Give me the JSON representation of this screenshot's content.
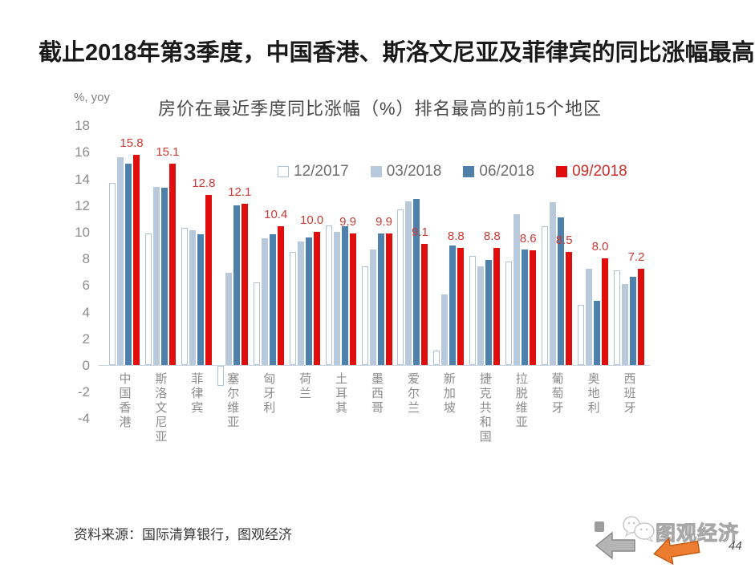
{
  "page": {
    "title": "截止2018年第3季度，中国香港、斯洛文尼亚及菲律宾的同比涨幅最高。"
  },
  "chart_data": {
    "type": "bar",
    "title": "房价在最近季度同比涨幅（%）排名最高的前15个地区",
    "unit_label": "%, yoy",
    "ylim": [
      -4,
      18
    ],
    "yticks": [
      18,
      16,
      14,
      12,
      10,
      8,
      6,
      4,
      2,
      0,
      -2,
      -4
    ],
    "grid": false,
    "legend_position": "top-inside",
    "categories": [
      "中国香港",
      "斯洛文尼亚",
      "菲律宾",
      "塞尔维亚",
      "匈牙利",
      "荷兰",
      "土耳其",
      "墨西哥",
      "爱尔兰",
      "新加坡",
      "捷克共和国",
      "拉脱维亚",
      "葡萄牙",
      "奥地利",
      "西班牙"
    ],
    "series": [
      {
        "name": "12/2017",
        "style": "outline",
        "color": "#ffffff",
        "border": "#b0c3d6",
        "values": [
          13.7,
          9.9,
          10.3,
          -1.5,
          6.2,
          8.5,
          10.5,
          7.4,
          11.7,
          1.1,
          8.2,
          7.8,
          10.4,
          4.5,
          7.1
        ]
      },
      {
        "name": "03/2018",
        "style": "solid",
        "color": "#b9c9dc",
        "border": "#b9c9dc",
        "values": [
          15.6,
          13.4,
          10.1,
          6.9,
          9.5,
          9.3,
          10.0,
          8.7,
          12.3,
          5.3,
          7.4,
          11.3,
          12.2,
          7.2,
          6.1
        ]
      },
      {
        "name": "06/2018",
        "style": "solid",
        "color": "#4e80ac",
        "border": "#4e80ac",
        "values": [
          15.1,
          13.3,
          9.8,
          12.0,
          9.8,
          9.6,
          10.4,
          9.9,
          12.5,
          9.0,
          7.9,
          8.7,
          11.1,
          4.8,
          6.6
        ]
      },
      {
        "name": "09/2018",
        "style": "solid",
        "color": "#e00d0d",
        "border": "#e00d0d",
        "values": [
          15.8,
          15.1,
          12.8,
          12.1,
          10.4,
          10.0,
          9.9,
          9.9,
          9.1,
          8.8,
          8.8,
          8.6,
          8.5,
          8.0,
          7.2
        ],
        "labeled": true
      }
    ],
    "data_labels": [
      "15.8",
      "15.1",
      "12.8",
      "12.1",
      "10.4",
      "10.0",
      "9.9",
      "9.9",
      "9.1",
      "8.8",
      "8.8",
      "8.6",
      "8.5",
      "8.0",
      "7.2"
    ],
    "data_label_color": "#cb3a34",
    "legend_text_color": "#6e6e6e",
    "legend_last_text_color": "#cc2b2b"
  },
  "footer": {
    "source": "资料来源：国际清算银行，图观经济",
    "logo_text": "图观经济",
    "page_number": "44"
  },
  "icons": {
    "gray_arrow_fill": "#b5b5b5",
    "gray_arrow_stroke": "#8a8a8a",
    "orange_arrow_fill": "#ed7d31",
    "orange_arrow_stroke": "#c55a11",
    "mascot_stroke": "#c8c8c8"
  }
}
